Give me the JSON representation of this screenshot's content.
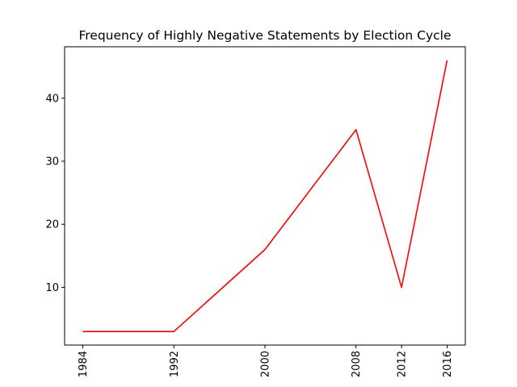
{
  "chart_data": {
    "type": "line",
    "title": "Frequency of Highly Negative Statements by Election Cycle",
    "xlabel": "",
    "ylabel": "",
    "x": [
      1984,
      1992,
      2000,
      2008,
      2012,
      2016
    ],
    "x_tick_labels": [
      "1984",
      "1992",
      "2000",
      "2008",
      "2012",
      "2016"
    ],
    "series": [
      {
        "values": [
          3,
          3,
          16,
          35,
          10,
          46
        ],
        "color": "#ff0000"
      }
    ],
    "xlim": [
      1982.4,
      2017.6
    ],
    "ylim": [
      0.85,
      48.15
    ],
    "y_ticks": [
      10,
      20,
      30,
      40
    ],
    "x_tick_rotation": "vertical",
    "grid": false,
    "legend": "none"
  }
}
